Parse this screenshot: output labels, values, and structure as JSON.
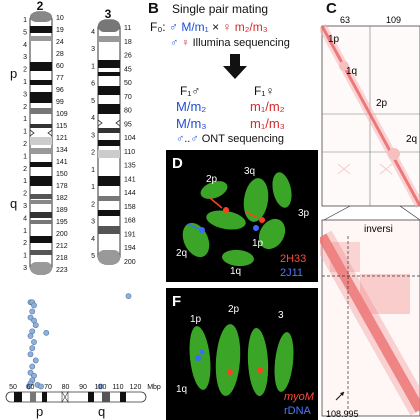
{
  "panel_A": {
    "chr2": {
      "title": "2",
      "arm_p": "p",
      "arm_q": "q",
      "right_labels": [
        "10",
        "19",
        "24",
        "28",
        "60",
        "77",
        "96",
        "99",
        "109",
        "115",
        "121",
        "134",
        "141",
        "150",
        "178",
        "182",
        "189",
        "195",
        "200",
        "212",
        "218",
        "223"
      ],
      "left_labels": [
        "1",
        "5",
        "4",
        "3",
        "2",
        "1",
        "3",
        "2",
        "1",
        "1",
        "2",
        "1",
        "2",
        "1",
        "2",
        "3",
        "4",
        "1",
        "2",
        "1",
        "3"
      ]
    },
    "chr3": {
      "title": "3",
      "right_labels": [
        "11",
        "18",
        "26",
        "45",
        "50",
        "70",
        "80",
        "95",
        "104",
        "110",
        "135",
        "141",
        "144",
        "158",
        "168",
        "191",
        "194",
        "200"
      ],
      "left_labels": [
        "4",
        "3",
        "1",
        "6",
        "5",
        "4",
        "3",
        "2",
        "1",
        "1",
        "2",
        "3",
        "4",
        "5"
      ]
    }
  },
  "panel_B": {
    "letter": "B",
    "title": "Single pair mating",
    "f0_label": "F₀:",
    "f0_male": "♂ M/m₁",
    "f0_cross": "×",
    "f0_female": "♀ m₂/m₃",
    "illumina": "Illumina sequencing",
    "f1_male_header": "F₁♂",
    "f1_female_header": "F₁♀",
    "f1_male_genotypes": [
      "M/m₂",
      "M/m₃"
    ],
    "f1_female_genotypes": [
      "m₁/m₂",
      "m₁/m₃"
    ],
    "ont": "ONT sequencing"
  },
  "panel_C": {
    "letter": "C",
    "top_labels": [
      "63",
      "109"
    ],
    "region_labels": [
      "1p",
      "1q",
      "2p",
      "2q"
    ],
    "inversion_label": "inversi",
    "bottom_label": "108.995"
  },
  "panel_D": {
    "letter": "D",
    "labels": [
      "2p",
      "3q",
      "3p",
      "1p",
      "2q",
      "1q"
    ],
    "probe_red": "2H33",
    "probe_blue": "2J11"
  },
  "panel_F": {
    "letter": "F",
    "labels": [
      "1p",
      "2p",
      "3",
      "1q"
    ],
    "probe_red": "myoM",
    "probe_blue": "rDNA"
  },
  "panel_E": {
    "x_ticks": [
      "50",
      "60",
      "70",
      "80",
      "90",
      "100",
      "110",
      "120",
      "Mbp"
    ],
    "arm_p": "p",
    "arm_q": "q",
    "points": [
      {
        "x": 60,
        "y": 56
      },
      {
        "x": 61,
        "y": 56
      },
      {
        "x": 62,
        "y": 54
      },
      {
        "x": 61,
        "y": 50
      },
      {
        "x": 60,
        "y": 46
      },
      {
        "x": 62,
        "y": 44
      },
      {
        "x": 63,
        "y": 41
      },
      {
        "x": 61,
        "y": 37
      },
      {
        "x": 60,
        "y": 34
      },
      {
        "x": 62,
        "y": 30
      },
      {
        "x": 61,
        "y": 26
      },
      {
        "x": 60,
        "y": 22
      },
      {
        "x": 63,
        "y": 18
      },
      {
        "x": 61,
        "y": 14
      },
      {
        "x": 60,
        "y": 10
      },
      {
        "x": 62,
        "y": 8
      },
      {
        "x": 61,
        "y": 5
      },
      {
        "x": 60,
        "y": 3
      },
      {
        "x": 64,
        "y": 2
      },
      {
        "x": 59,
        "y": 1
      },
      {
        "x": 69,
        "y": 36
      },
      {
        "x": 116,
        "y": 60
      },
      {
        "x": 100,
        "y": 1
      },
      {
        "x": 66,
        "y": 1
      }
    ]
  },
  "colors": {
    "accent_blue": "#1f4fd6",
    "accent_red": "#d42a2a",
    "hic_red": "#e02020",
    "micro_green": "#3fae2a",
    "point_blue": "#8fb0d8"
  }
}
